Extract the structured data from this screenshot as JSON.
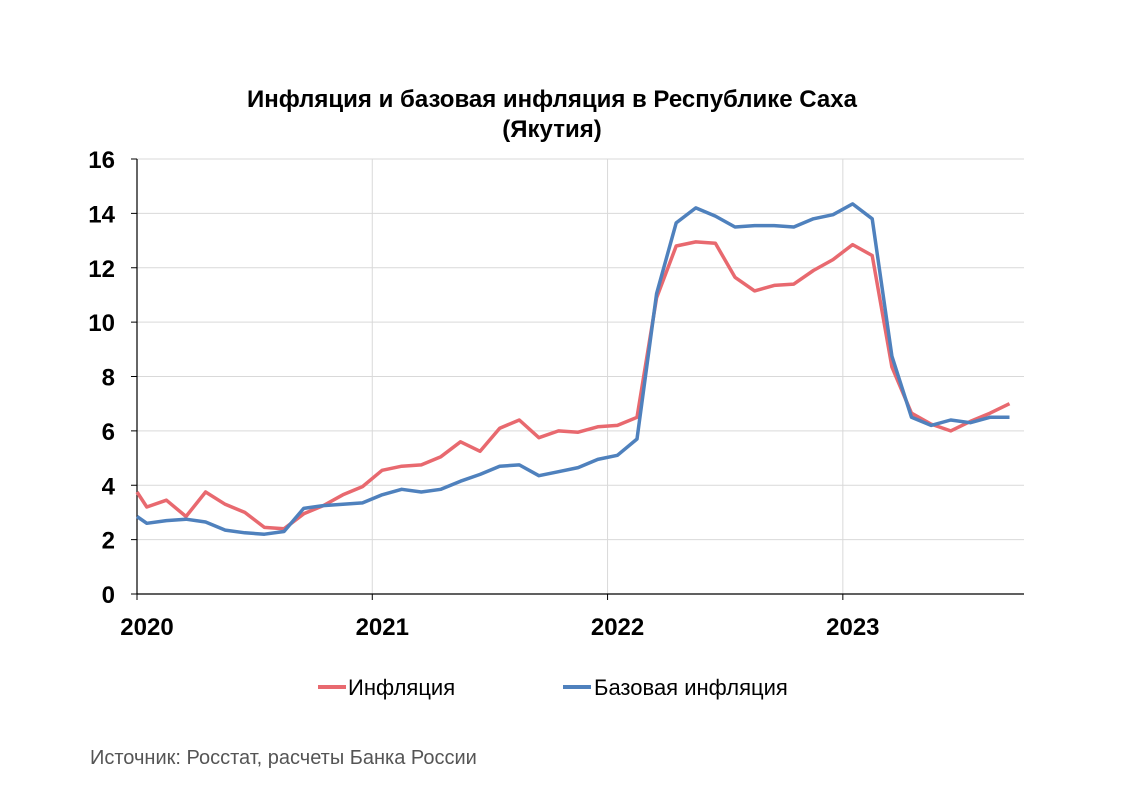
{
  "chart_data": {
    "type": "line",
    "title_line1": "Инфляция и базовая инфляция в Республике Саха",
    "title_line2": "(Якутия)",
    "xlabel": "",
    "ylabel": "",
    "ylim": [
      0,
      16
    ],
    "yticks": [
      "0",
      "2",
      "4",
      "6",
      "8",
      "10",
      "12",
      "14",
      "16"
    ],
    "xticks": [
      "2020",
      "2021",
      "2022",
      "2023"
    ],
    "grid": true,
    "legend_position": "bottom",
    "x": [
      "2020-01",
      "2020-02",
      "2020-03",
      "2020-04",
      "2020-05",
      "2020-06",
      "2020-07",
      "2020-08",
      "2020-09",
      "2020-10",
      "2020-11",
      "2020-12",
      "2021-01",
      "2021-02",
      "2021-03",
      "2021-04",
      "2021-05",
      "2021-06",
      "2021-07",
      "2021-08",
      "2021-09",
      "2021-10",
      "2021-11",
      "2021-12",
      "2022-01",
      "2022-02",
      "2022-03",
      "2022-04",
      "2022-05",
      "2022-06",
      "2022-07",
      "2022-08",
      "2022-09",
      "2022-10",
      "2022-11",
      "2022-12",
      "2023-01",
      "2023-02",
      "2023-03",
      "2023-04",
      "2023-05",
      "2023-06",
      "2023-07",
      "2023-08",
      "2023-09"
    ],
    "series": [
      {
        "name": "Инфляция",
        "color": "#e8696f",
        "values": [
          3.2,
          3.45,
          2.85,
          3.75,
          3.3,
          3.0,
          2.45,
          2.4,
          2.95,
          3.25,
          3.65,
          3.95,
          4.55,
          4.7,
          4.75,
          5.05,
          5.6,
          5.25,
          6.1,
          6.4,
          5.75,
          6.0,
          5.95,
          6.15,
          6.2,
          6.5,
          10.9,
          12.8,
          12.95,
          12.9,
          11.65,
          11.15,
          11.35,
          11.4,
          11.9,
          12.3,
          12.85,
          12.45,
          8.35,
          6.65,
          6.25,
          6.0,
          6.35,
          6.65,
          7.0
        ]
      },
      {
        "name": "Базовая инфляция",
        "color": "#4f81bd",
        "values": [
          2.6,
          2.7,
          2.75,
          2.65,
          2.35,
          2.25,
          2.2,
          2.3,
          3.15,
          3.25,
          3.3,
          3.35,
          3.65,
          3.85,
          3.75,
          3.85,
          4.15,
          4.4,
          4.7,
          4.75,
          4.35,
          4.5,
          4.65,
          4.95,
          5.1,
          5.7,
          11.05,
          13.65,
          14.2,
          13.9,
          13.5,
          13.55,
          13.55,
          13.5,
          13.8,
          13.95,
          14.35,
          13.8,
          8.75,
          6.5,
          6.2,
          6.4,
          6.3,
          6.5,
          6.5
        ]
      }
    ]
  },
  "source_note": "Источник: Росстат, расчеты Банка России"
}
